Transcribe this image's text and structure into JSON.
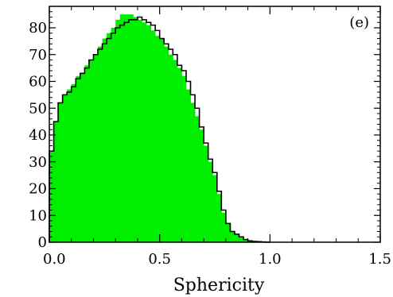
{
  "chart_data": {
    "type": "histogram",
    "panel_label": "(e)",
    "xlabel": "Sphericity",
    "ylabel": "",
    "xlim": [
      0.0,
      1.5
    ],
    "ylim": [
      0,
      88
    ],
    "x_ticks": [
      0.0,
      0.5,
      1.0,
      1.5
    ],
    "x_tick_labels": [
      "0.0",
      "0.5",
      "1.0",
      "1.5"
    ],
    "y_ticks": [
      0,
      10,
      20,
      30,
      40,
      50,
      60,
      70,
      80
    ],
    "y_tick_labels": [
      "0",
      "10",
      "20",
      "30",
      "40",
      "50",
      "60",
      "70",
      "80"
    ],
    "bin_width": 0.02,
    "bin_starts": [
      0.0,
      0.02,
      0.04,
      0.06,
      0.08,
      0.1,
      0.12,
      0.14,
      0.16,
      0.18,
      0.2,
      0.22,
      0.24,
      0.26,
      0.28,
      0.3,
      0.32,
      0.34,
      0.36,
      0.38,
      0.4,
      0.42,
      0.44,
      0.46,
      0.48,
      0.5,
      0.52,
      0.54,
      0.56,
      0.58,
      0.6,
      0.62,
      0.64,
      0.66,
      0.68,
      0.7,
      0.72,
      0.74,
      0.76,
      0.78,
      0.8,
      0.82,
      0.84,
      0.86,
      0.88,
      0.9,
      0.92,
      0.94,
      0.96,
      0.98
    ],
    "series": [
      {
        "style": "filled",
        "color": "#00ee00",
        "values": [
          34,
          45,
          52,
          55,
          57,
          59,
          62,
          63,
          66,
          68,
          70,
          73,
          76,
          78,
          80,
          83,
          85,
          85,
          85,
          84,
          83,
          82,
          81,
          79,
          77,
          76,
          73,
          70,
          68,
          65,
          62,
          57,
          52,
          47,
          42,
          36,
          30,
          25,
          18,
          11,
          7,
          4,
          3,
          2,
          1,
          0.5,
          0.3,
          0.2,
          0.1,
          0
        ]
      },
      {
        "style": "outline",
        "color": "#000000",
        "values": [
          34,
          45,
          52,
          55,
          56,
          58,
          61,
          63,
          65,
          68,
          70,
          72,
          74,
          76,
          78,
          80,
          81,
          82,
          83,
          83,
          84,
          83,
          82,
          81,
          79,
          76,
          74,
          72,
          70,
          66,
          64,
          60,
          55,
          50,
          43,
          37,
          31,
          26,
          19,
          12,
          7,
          4,
          3,
          2,
          1,
          0.5,
          0.3,
          0.2,
          0.1,
          0
        ]
      }
    ]
  }
}
